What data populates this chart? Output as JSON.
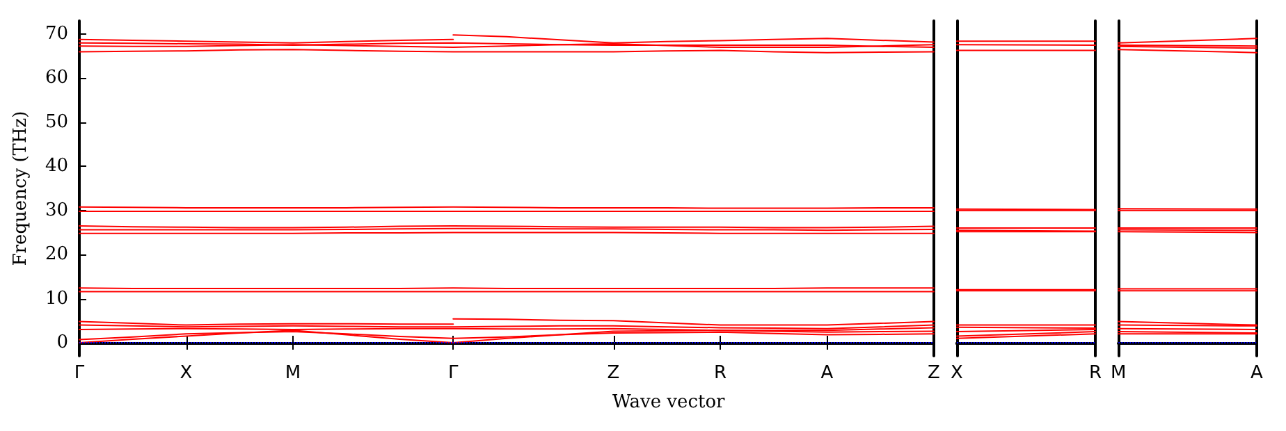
{
  "chart_data": [
    {
      "type": "line",
      "ylabel": "Frequency (THz)",
      "xlabel": "Wave vector",
      "marker": "none",
      "line_style": "solid",
      "categories": [
        "Γ",
        null,
        "X",
        null,
        "M",
        null,
        null,
        "Γ",
        null,
        null,
        "Z",
        null,
        "R",
        null,
        "A",
        null,
        "Z"
      ],
      "ylim": [
        -3,
        73
      ],
      "yticks": [
        0,
        10,
        20,
        30,
        40,
        50,
        60,
        70
      ],
      "ref_lines": [
        {
          "axis": "y",
          "value": 0,
          "color": "#0000ff",
          "line_style": "dotted"
        }
      ],
      "series": [
        {
          "color": "#ff0000",
          "values": [
            68.8,
            68.6,
            68.4,
            68.2,
            68,
            68.3,
            68.6,
            68.8,
            null,
            null,
            null,
            null,
            null,
            null,
            null,
            null,
            null
          ]
        },
        {
          "color": "#ff0000",
          "values": [
            null,
            null,
            null,
            null,
            null,
            null,
            null,
            69.8,
            69.4,
            68.7,
            68,
            68.3,
            68.5,
            68.8,
            69,
            68.6,
            68.2
          ]
        },
        {
          "color": "#ff0000",
          "values": [
            68,
            67.9,
            67.8,
            67.7,
            67.5,
            67.7,
            67.9,
            68,
            67.8,
            67.6,
            67.5,
            67.5,
            67.5,
            67.5,
            67.5,
            67.2,
            67
          ]
        },
        {
          "color": "#ff0000",
          "values": [
            67.3,
            67.2,
            67.2,
            67.4,
            67.6,
            67.4,
            67.2,
            67,
            67.3,
            67.6,
            67.8,
            67.4,
            67,
            67,
            67,
            67.3,
            67.6
          ]
        },
        {
          "color": "#ff0000",
          "values": [
            66,
            66.1,
            66.2,
            66.4,
            66.5,
            66.3,
            66.1,
            66,
            66,
            66,
            66,
            66.2,
            66.3,
            66,
            65.8,
            65.9,
            66
          ]
        },
        {
          "color": "#ff0000",
          "values": [
            30.8,
            30.7,
            30.6,
            30.6,
            30.6,
            30.6,
            30.7,
            30.8,
            30.7,
            30.6,
            30.6,
            30.6,
            30.5,
            30.5,
            30.5,
            30.6,
            30.6
          ]
        },
        {
          "color": "#ff0000",
          "values": [
            29.8,
            29.8,
            29.8,
            29.8,
            29.8,
            29.8,
            29.8,
            29.8,
            29.8,
            29.8,
            29.8,
            29.8,
            29.8,
            29.8,
            29.8,
            29.8,
            29.8
          ]
        },
        {
          "color": "#ff0000",
          "values": [
            26.5,
            26.3,
            26.2,
            26.1,
            26.1,
            26.2,
            26.4,
            26.5,
            26.4,
            26.3,
            26.2,
            26.2,
            26.2,
            26.1,
            26.1,
            26.2,
            26.4
          ]
        },
        {
          "color": "#ff0000",
          "values": [
            25.6,
            25.6,
            25.6,
            25.6,
            25.6,
            25.7,
            25.8,
            25.9,
            25.9,
            25.8,
            25.8,
            25.7,
            25.6,
            25.6,
            25.5,
            25.6,
            25.7
          ]
        },
        {
          "color": "#ff0000",
          "values": [
            24.8,
            24.8,
            24.8,
            24.8,
            24.8,
            24.9,
            24.9,
            25,
            25,
            25,
            25,
            24.9,
            24.8,
            24.8,
            24.8,
            24.8,
            24.8
          ]
        },
        {
          "color": "#ff0000",
          "values": [
            12.4,
            12.3,
            12.3,
            12.3,
            12.3,
            12.3,
            12.3,
            12.4,
            12.3,
            12.3,
            12.3,
            12.3,
            12.3,
            12.3,
            12.4,
            12.4,
            12.4
          ]
        },
        {
          "color": "#ff0000",
          "values": [
            11.6,
            11.6,
            11.6,
            11.6,
            11.6,
            11.6,
            11.6,
            11.6,
            11.6,
            11.6,
            11.6,
            11.6,
            11.6,
            11.6,
            11.6,
            11.6,
            11.6
          ]
        },
        {
          "color": "#ff0000",
          "values": [
            4.8,
            4.4,
            4,
            4.2,
            4.3,
            4.3,
            4.2,
            4.2,
            null,
            null,
            null,
            null,
            null,
            null,
            null,
            null,
            null
          ]
        },
        {
          "color": "#ff0000",
          "values": [
            null,
            null,
            null,
            null,
            null,
            null,
            null,
            5.4,
            5.3,
            5.1,
            5,
            4.5,
            4,
            4,
            4,
            4.4,
            4.8
          ]
        },
        {
          "color": "#ff0000",
          "values": [
            4,
            3.8,
            3.6,
            3.7,
            3.8,
            3.7,
            3.6,
            3.6,
            3.7,
            3.8,
            3.8,
            3.6,
            3.4,
            3.3,
            3.2,
            3.6,
            4
          ]
        },
        {
          "color": "#ff0000",
          "values": [
            3,
            3.1,
            3.2,
            3.1,
            3,
            3.1,
            3.2,
            3.2,
            3.1,
            3.1,
            3.2,
            3,
            2.8,
            2.8,
            2.8,
            3.1,
            3.4
          ]
        },
        {
          "color": "#ff0000",
          "values": [
            0,
            0.8,
            1.5,
            2.2,
            2.8,
            1.8,
            0.8,
            0,
            1,
            1.8,
            2.6,
            2.7,
            2.8,
            2.6,
            2.4,
            2.5,
            2.6
          ]
        },
        {
          "color": "#ff0000",
          "values": [
            0.7,
            1.3,
            2,
            2.3,
            2.5,
            2,
            1.4,
            1,
            1.3,
            1.8,
            2.2,
            2.3,
            2.4,
            2.1,
            1.8,
            1.9,
            2
          ]
        }
      ]
    },
    {
      "type": "line",
      "marker": "none",
      "line_style": "solid",
      "tick_labels": "x",
      "categories": [
        "X",
        "R"
      ],
      "ylim": [
        -3,
        73
      ],
      "yticks": [
        0,
        10,
        20,
        30,
        40,
        50,
        60,
        70
      ],
      "ref_lines": [
        {
          "axis": "y",
          "value": 0,
          "color": "#0000ff",
          "line_style": "dotted"
        }
      ],
      "series": [
        {
          "color": "#ff0000",
          "values": [
            68.4,
            68.4
          ]
        },
        {
          "color": "#ff0000",
          "values": [
            67.6,
            67.5
          ]
        },
        {
          "color": "#ff0000",
          "values": [
            66.3,
            66.3
          ]
        },
        {
          "color": "#ff0000",
          "values": [
            30.3,
            30.2
          ]
        },
        {
          "color": "#ff0000",
          "values": [
            30,
            30
          ]
        },
        {
          "color": "#ff0000",
          "values": [
            26,
            26
          ]
        },
        {
          "color": "#ff0000",
          "values": [
            25.5,
            25.3
          ]
        },
        {
          "color": "#ff0000",
          "values": [
            25.2,
            25.2
          ]
        },
        {
          "color": "#ff0000",
          "values": [
            12,
            12
          ]
        },
        {
          "color": "#ff0000",
          "values": [
            11.8,
            11.8
          ]
        },
        {
          "color": "#ff0000",
          "values": [
            4,
            4
          ]
        },
        {
          "color": "#ff0000",
          "values": [
            3.5,
            3.3
          ]
        },
        {
          "color": "#ff0000",
          "values": [
            2.5,
            3
          ]
        },
        {
          "color": "#ff0000",
          "values": [
            1.5,
            2.5
          ]
        },
        {
          "color": "#ff0000",
          "values": [
            1,
            2
          ]
        }
      ]
    },
    {
      "type": "line",
      "marker": "none",
      "line_style": "solid",
      "tick_labels": "x",
      "categories": [
        "M",
        "A"
      ],
      "ylim": [
        -3,
        73
      ],
      "yticks": [
        0,
        10,
        20,
        30,
        40,
        50,
        60,
        70
      ],
      "ref_lines": [
        {
          "axis": "y",
          "value": 0,
          "color": "#0000ff",
          "line_style": "dotted"
        }
      ],
      "series": [
        {
          "color": "#ff0000",
          "values": [
            68,
            69
          ]
        },
        {
          "color": "#ff0000",
          "values": [
            67.5,
            67.3
          ]
        },
        {
          "color": "#ff0000",
          "values": [
            67.2,
            66.8
          ]
        },
        {
          "color": "#ff0000",
          "values": [
            66.5,
            65.8
          ]
        },
        {
          "color": "#ff0000",
          "values": [
            30.4,
            30.3
          ]
        },
        {
          "color": "#ff0000",
          "values": [
            30,
            30
          ]
        },
        {
          "color": "#ff0000",
          "values": [
            26,
            26
          ]
        },
        {
          "color": "#ff0000",
          "values": [
            25.6,
            25.5
          ]
        },
        {
          "color": "#ff0000",
          "values": [
            25.2,
            25
          ]
        },
        {
          "color": "#ff0000",
          "values": [
            12.2,
            12.2
          ]
        },
        {
          "color": "#ff0000",
          "values": [
            11.8,
            11.8
          ]
        },
        {
          "color": "#ff0000",
          "values": [
            4.8,
            4
          ]
        },
        {
          "color": "#ff0000",
          "values": [
            4,
            3.8
          ]
        },
        {
          "color": "#ff0000",
          "values": [
            3.2,
            3
          ]
        },
        {
          "color": "#ff0000",
          "values": [
            2.5,
            2.2
          ]
        },
        {
          "color": "#ff0000",
          "values": [
            2,
            2
          ]
        }
      ]
    }
  ]
}
